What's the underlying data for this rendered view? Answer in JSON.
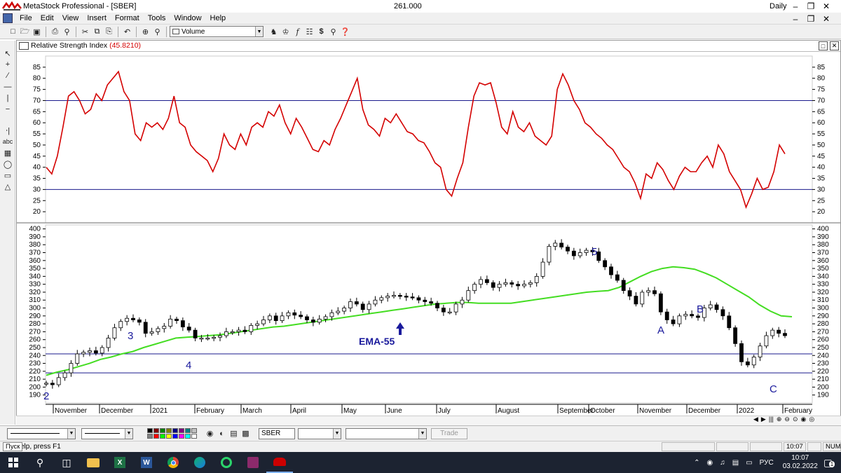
{
  "window": {
    "title": "MetaStock Professional - [SBER]",
    "price": "261.000",
    "period": "Daily"
  },
  "menu": [
    "File",
    "Edit",
    "View",
    "Insert",
    "Format",
    "Tools",
    "Window",
    "Help"
  ],
  "toolbar": {
    "indicator_select": "Volume"
  },
  "chart": {
    "indicator_title": "Relative Strength Index",
    "indicator_value": "(45.8210)",
    "rsi_axis": [
      "85",
      "80",
      "75",
      "70",
      "65",
      "60",
      "55",
      "50",
      "45",
      "40",
      "35",
      "30",
      "25",
      "20"
    ],
    "price_axis": [
      "400",
      "390",
      "380",
      "370",
      "360",
      "350",
      "340",
      "330",
      "320",
      "310",
      "300",
      "290",
      "280",
      "270",
      "260",
      "250",
      "240",
      "230",
      "220",
      "210",
      "200",
      "190"
    ],
    "x_axis": [
      "November",
      "December",
      "2021",
      "February",
      "March",
      "April",
      "May",
      "June",
      "July",
      "August",
      "September",
      "October",
      "November",
      "December",
      "2022",
      "February"
    ],
    "wave_labels": [
      "2",
      "3",
      "4",
      "5",
      "A",
      "B",
      "C"
    ],
    "ema_label": "EMA-55",
    "rsi_color": "#d40000",
    "ema_color": "#44dd22",
    "hline_color": "#1a1a8c",
    "label_color": "#1a1a9c"
  },
  "chart_data": [
    {
      "type": "line",
      "series": [
        {
          "values": [
            40,
            37,
            45,
            58,
            72,
            74,
            70,
            64,
            66,
            73,
            70,
            77,
            80,
            83,
            74,
            70,
            55,
            52,
            60,
            58,
            60,
            57,
            62,
            72,
            60,
            58,
            50,
            47,
            45,
            43,
            38,
            44,
            55,
            50,
            48,
            55,
            50,
            58,
            60,
            58,
            65,
            63,
            68,
            60,
            55,
            62,
            58,
            53,
            48,
            47,
            52,
            50,
            57,
            62,
            68,
            74,
            80,
            66,
            59,
            57,
            54,
            62,
            60,
            64,
            60,
            56,
            55,
            52,
            51,
            47,
            42,
            40,
            30,
            27,
            35,
            42,
            58,
            72,
            78,
            77,
            78,
            69,
            58,
            55,
            65,
            58,
            56,
            60,
            54,
            52,
            50,
            54,
            75,
            82,
            77,
            70,
            66,
            60,
            58,
            55,
            53,
            50,
            48,
            44,
            40,
            38,
            33,
            26,
            37,
            35,
            42,
            39,
            34,
            30,
            36,
            40,
            38,
            38,
            42,
            45,
            40,
            50,
            46,
            38,
            34,
            30,
            22,
            28,
            35,
            30,
            31,
            38,
            50,
            46
          ]
        }
      ],
      "ylim": [
        15,
        90
      ],
      "reference_lines": [
        70,
        30
      ]
    },
    {
      "type": "candlestick",
      "close": [
        205,
        203,
        212,
        218,
        230,
        242,
        244,
        246,
        243,
        250,
        262,
        275,
        283,
        287,
        285,
        282,
        268,
        270,
        274,
        277,
        286,
        284,
        276,
        272,
        262,
        262,
        262,
        263,
        265,
        270,
        270,
        272,
        270,
        278,
        280,
        285,
        290,
        284,
        290,
        294,
        291,
        289,
        285,
        282,
        286,
        289,
        294,
        296,
        300,
        308,
        305,
        298,
        305,
        310,
        313,
        315,
        316,
        315,
        314,
        313,
        310,
        308,
        306,
        300,
        295,
        295,
        305,
        310,
        322,
        330,
        336,
        332,
        326,
        330,
        332,
        330,
        328,
        330,
        332,
        340,
        358,
        378,
        382,
        377,
        372,
        366,
        370,
        373,
        371,
        360,
        352,
        342,
        335,
        322,
        315,
        305,
        320,
        322,
        318,
        295,
        285,
        280,
        290,
        292,
        290,
        288,
        300,
        304,
        298,
        290,
        275,
        255,
        232,
        228,
        238,
        252,
        265,
        272,
        268,
        265
      ],
      "ema_55": [
        215,
        219,
        222,
        226,
        230,
        235,
        238,
        242,
        245,
        250,
        254,
        258,
        262,
        263,
        264,
        265,
        266,
        268,
        270,
        272,
        274,
        276,
        277,
        279,
        281,
        283,
        285,
        287,
        289,
        291,
        293,
        295,
        297,
        299,
        301,
        303,
        305,
        306,
        307,
        307,
        306,
        306,
        306,
        306,
        308,
        310,
        312,
        314,
        316,
        318,
        320,
        321,
        322,
        326,
        333,
        340,
        346,
        350,
        352,
        351,
        349,
        344,
        338,
        330,
        322,
        314,
        304,
        296,
        290,
        289
      ],
      "ylim": [
        180,
        405
      ],
      "reference_lines": [
        242,
        218
      ]
    }
  ],
  "bottombar": {
    "symbol": "SBER",
    "trade_label": "Trade"
  },
  "status": {
    "help_text": "For Help, press F1",
    "start_tooltip": "Пуск",
    "time": "10:07",
    "num": "NUM"
  },
  "taskbar": {
    "lang": "РУС",
    "time": "10:07",
    "date": "03.02.2022",
    "notif_count": "1"
  }
}
